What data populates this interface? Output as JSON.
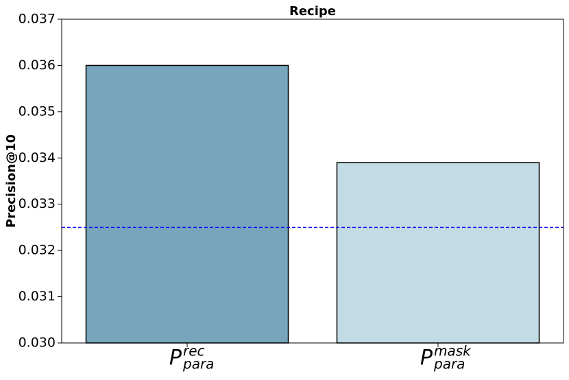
{
  "chart_data": {
    "type": "bar",
    "title": "Recipe",
    "y_label": "Precision@10",
    "categories": [
      {
        "base": "P",
        "sub": "para",
        "sup": "rec"
      },
      {
        "base": "P",
        "sub": "para",
        "sup": "mask"
      }
    ],
    "values": [
      0.036,
      0.0339
    ],
    "colors": [
      "#76a5bc",
      "#c2dbe5"
    ],
    "ylim": [
      0.03,
      0.037
    ],
    "yticks": [
      {
        "value": 0.03,
        "label": "0.030"
      },
      0.031,
      0.032,
      0.033,
      0.034,
      0.035,
      0.036,
      0.037
    ],
    "reference_line": {
      "value": 0.0325,
      "color": "#0000ff"
    }
  }
}
